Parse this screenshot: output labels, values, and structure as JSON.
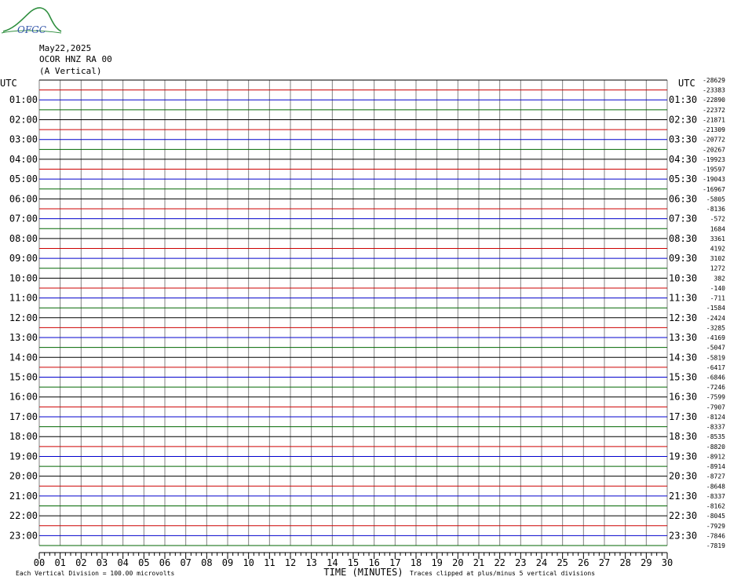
{
  "header": {
    "date": "May22,2025",
    "station": "OCOR HNZ RA 00",
    "component": "(A Vertical)",
    "logo_text": "OFGC"
  },
  "chart_data": {
    "type": "line",
    "title": "May22,2025",
    "left_axis_title": "UTC",
    "right_axis_title": "UTC",
    "x_axis_title": "TIME (MINUTES)",
    "x_ticks": [
      "00",
      "01",
      "02",
      "03",
      "04",
      "05",
      "06",
      "07",
      "08",
      "09",
      "10",
      "11",
      "12",
      "13",
      "14",
      "15",
      "16",
      "17",
      "18",
      "19",
      "20",
      "21",
      "22",
      "23",
      "24",
      "25",
      "26",
      "27",
      "28",
      "29",
      "30"
    ],
    "xlim": [
      0,
      30
    ],
    "left_hour_labels": [
      "01:00",
      "02:00",
      "03:00",
      "04:00",
      "05:00",
      "06:00",
      "07:00",
      "08:00",
      "09:00",
      "10:00",
      "11:00",
      "12:00",
      "13:00",
      "14:00",
      "15:00",
      "16:00",
      "17:00",
      "18:00",
      "19:00",
      "20:00",
      "21:00",
      "22:00",
      "23:00"
    ],
    "right_hour_labels": [
      "01:30",
      "02:30",
      "03:30",
      "04:30",
      "05:30",
      "06:30",
      "07:30",
      "08:30",
      "09:30",
      "10:30",
      "11:30",
      "12:30",
      "13:30",
      "14:30",
      "15:30",
      "16:30",
      "17:30",
      "18:30",
      "19:30",
      "20:30",
      "21:30",
      "22:30",
      "23:30"
    ],
    "trace_offsets": [
      "-28629",
      "-23383",
      "-22890",
      "-22372",
      "-21871",
      "-21309",
      "-20772",
      "-20267",
      "-19923",
      "-19597",
      "-19043",
      "-16967",
      "-5805",
      "-8136",
      "-572",
      "1684",
      "3361",
      "4192",
      "3102",
      "1272",
      "382",
      "-140",
      "-711",
      "-1584",
      "-2424",
      "-3285",
      "-4169",
      "-5047",
      "-5819",
      "-6417",
      "-6846",
      "-7246",
      "-7599",
      "-7907",
      "-8124",
      "-8337",
      "-8535",
      "-8820",
      "-8912",
      "-8914",
      "-8727",
      "-8648",
      "-8337",
      "-8162",
      "-8045",
      "-7929",
      "-7846",
      "-7819"
    ],
    "trace_colors": [
      "#000000",
      "#cc0000",
      "#0000cc",
      "#006600"
    ],
    "footer_left": "Each Vertical Division =  100.00 microvolts",
    "footer_right": "Traces clipped at plus/minus 5 vertical divisions",
    "grid": true
  }
}
